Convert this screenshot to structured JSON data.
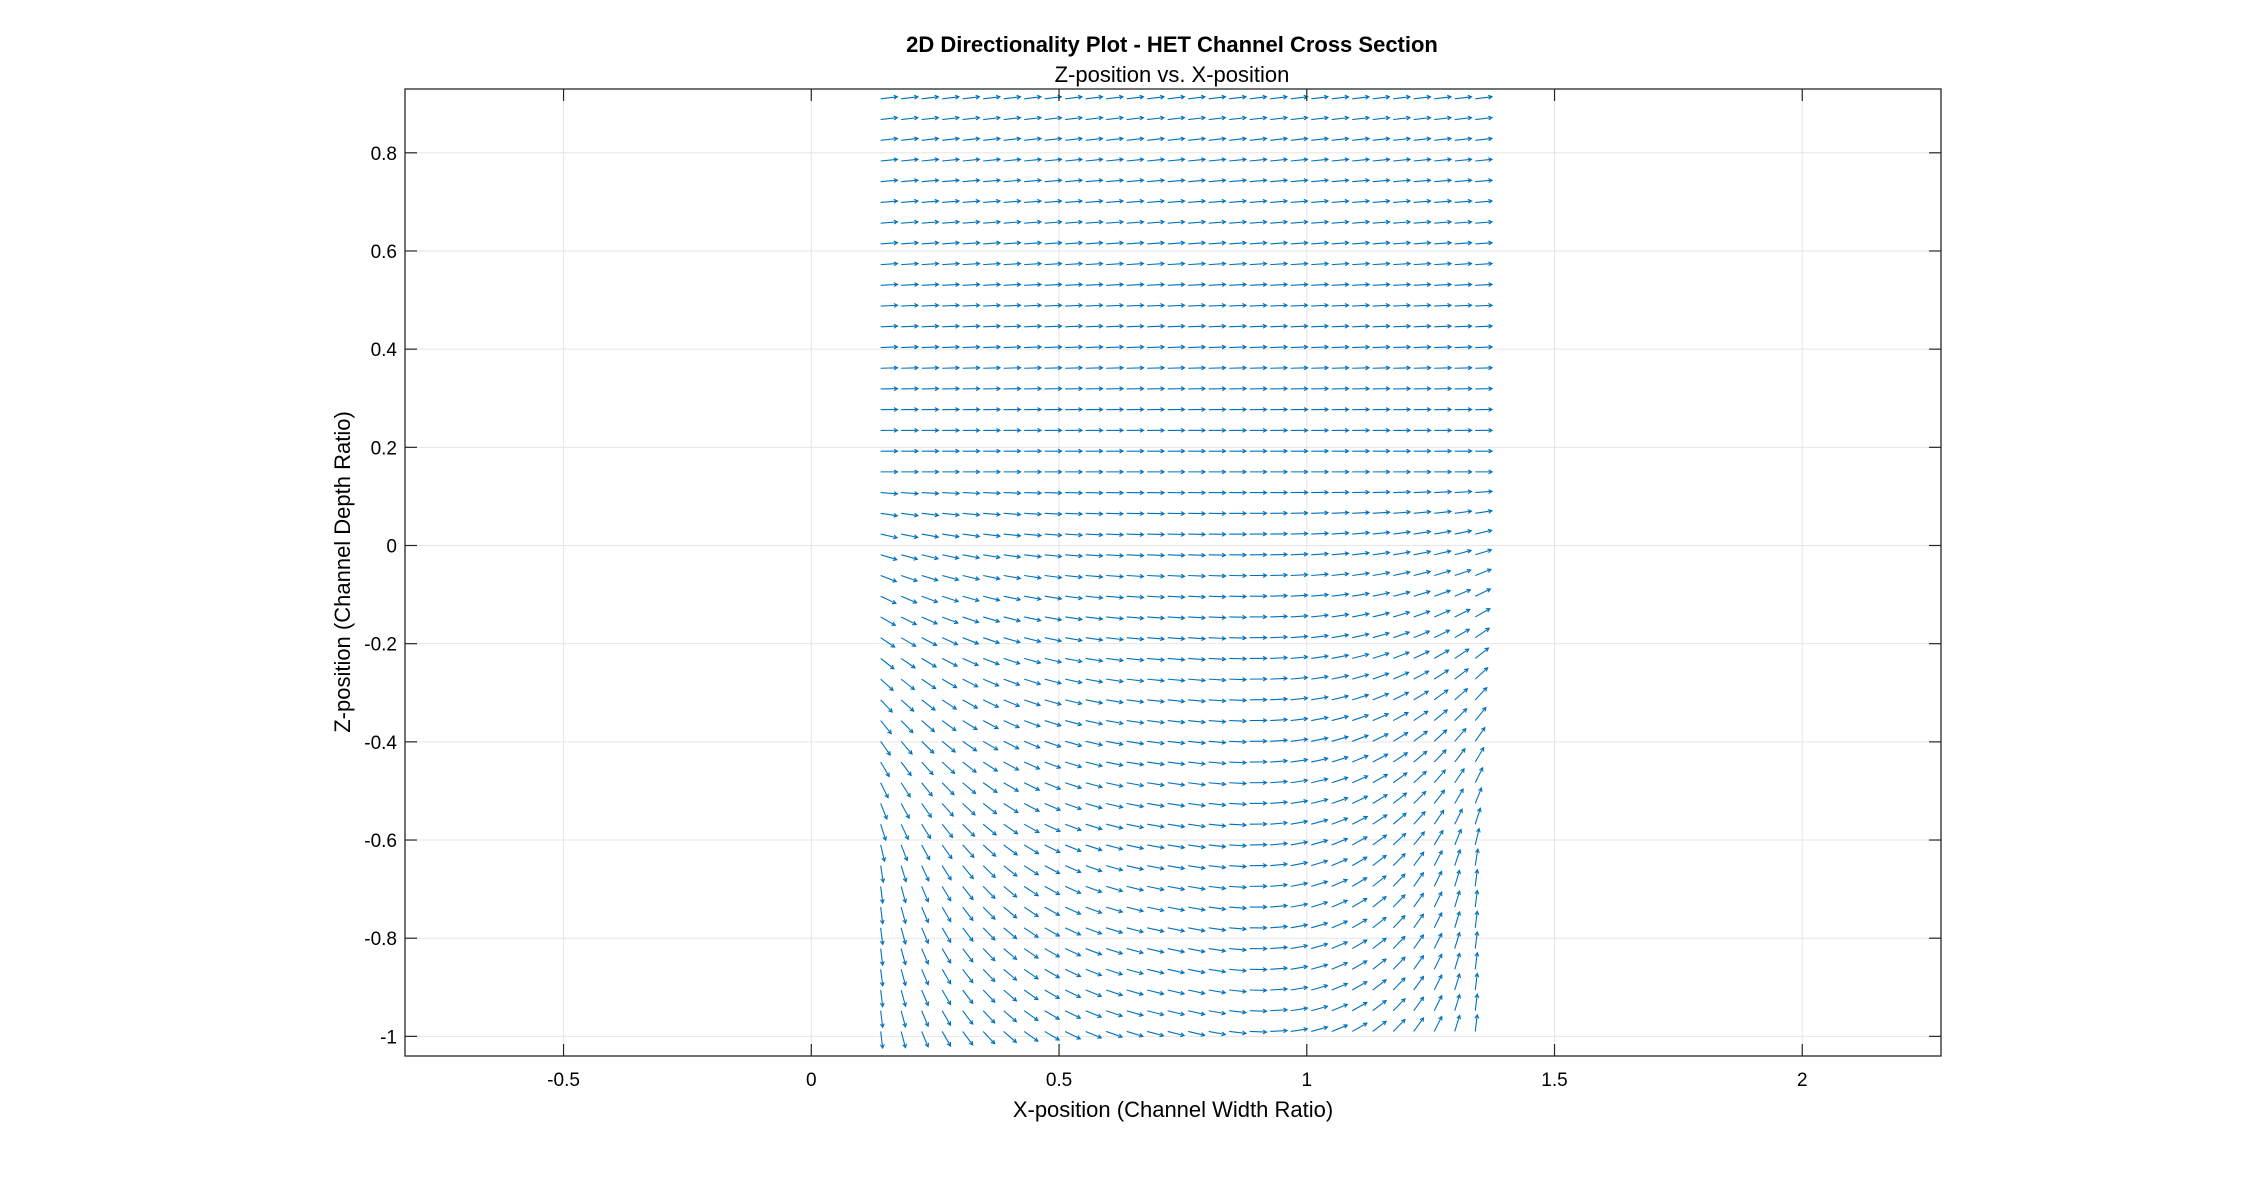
{
  "chart_data": {
    "type": "quiver",
    "title": "2D Directionality Plot - HET Channel Cross Section",
    "subtitle": "Z-position vs. X-position",
    "xlabel": "X-position (Channel Width Ratio)",
    "ylabel": "Z-position (Channel Depth Ratio)",
    "xlim": [
      -0.82,
      2.28
    ],
    "ylim": [
      -1.04,
      0.93
    ],
    "xticks": [
      -0.5,
      0,
      0.5,
      1,
      1.5,
      2
    ],
    "xtick_labels": [
      "-0.5",
      "0",
      "0.5",
      "1",
      "1.5",
      "2"
    ],
    "yticks": [
      -1,
      -0.8,
      -0.6,
      -0.4,
      -0.2,
      0,
      0.2,
      0.4,
      0.6,
      0.8
    ],
    "ytick_labels": [
      "-1",
      "-0.8",
      "-0.6",
      "-0.4",
      "-0.2",
      "0",
      "0.2",
      "0.4",
      "0.6",
      "0.8"
    ],
    "grid": true,
    "box": true,
    "color": "#0072BD",
    "field": {
      "x_range": [
        0.14,
        1.34
      ],
      "z_range": [
        -0.99,
        0.91
      ],
      "columns": 30,
      "rows": 46,
      "description_of_pattern": "near-horizontal rightward arrows in upper region tilting upward at top, curving into near-vertical arrows along left and right edges in lower region"
    }
  }
}
